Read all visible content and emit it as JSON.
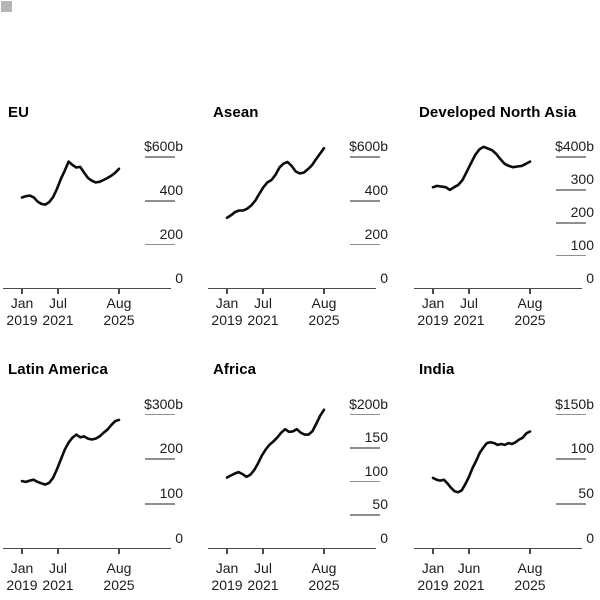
{
  "colors": {
    "background": "#ffffff",
    "line": "#0c0c0c",
    "grid": "#8f8f8f",
    "axis": "#4a4a4a",
    "text": "#1c1c1c",
    "title": "#000000",
    "corner_mark": "#b5b5b5"
  },
  "chart_data": [
    {
      "type": "line",
      "title": "EU",
      "unit": "billion USD",
      "ylim": [
        0,
        600
      ],
      "y_ticks": [
        {
          "label": "$600b",
          "value": 600
        },
        {
          "label": "400",
          "value": 400
        },
        {
          "label": "200",
          "value": 200
        },
        {
          "label": "0",
          "value": 0
        }
      ],
      "x_ticks": [
        {
          "month": "Jan",
          "year": "2019"
        },
        {
          "month": "Jul",
          "year": "2021"
        },
        {
          "month": "Aug",
          "year": "2025"
        }
      ],
      "values": [
        415,
        421,
        424,
        416,
        397,
        386,
        383,
        394,
        416,
        454,
        499,
        537,
        579,
        564,
        552,
        555,
        529,
        504,
        492,
        484,
        487,
        495,
        504,
        514,
        528,
        546
      ]
    },
    {
      "type": "line",
      "title": "Asean",
      "unit": "billion USD",
      "ylim": [
        0,
        600
      ],
      "y_ticks": [
        {
          "label": "$600b",
          "value": 600
        },
        {
          "label": "400",
          "value": 400
        },
        {
          "label": "200",
          "value": 200
        },
        {
          "label": "0",
          "value": 0
        }
      ],
      "x_ticks": [
        {
          "month": "Jan",
          "year": "2019"
        },
        {
          "month": "Jul",
          "year": "2021"
        },
        {
          "month": "Aug",
          "year": "2025"
        }
      ],
      "values": [
        323,
        334,
        349,
        356,
        356,
        364,
        379,
        401,
        432,
        462,
        484,
        495,
        519,
        552,
        570,
        577,
        559,
        534,
        525,
        529,
        544,
        562,
        589,
        615,
        640
      ]
    },
    {
      "type": "line",
      "title": "Developed North Asia",
      "unit": "billion USD",
      "ylim": [
        0,
        400
      ],
      "y_ticks": [
        {
          "label": "$400b",
          "value": 400
        },
        {
          "label": "300",
          "value": 300
        },
        {
          "label": "200",
          "value": 200
        },
        {
          "label": "100",
          "value": 100
        },
        {
          "label": "0",
          "value": 0
        }
      ],
      "x_ticks": [
        {
          "month": "Jan",
          "year": "2019"
        },
        {
          "month": "Jul",
          "year": "2021"
        },
        {
          "month": "Aug",
          "year": "2025"
        }
      ],
      "values": [
        308,
        312,
        310,
        308,
        300,
        308,
        315,
        330,
        355,
        381,
        406,
        423,
        431,
        426,
        421,
        409,
        393,
        379,
        373,
        369,
        371,
        373,
        379,
        386
      ]
    },
    {
      "type": "line",
      "title": "Latin America",
      "unit": "billion USD",
      "ylim": [
        0,
        300
      ],
      "y_ticks": [
        {
          "label": "$300b",
          "value": 300
        },
        {
          "label": "200",
          "value": 200
        },
        {
          "label": "100",
          "value": 100
        },
        {
          "label": "0",
          "value": 0
        }
      ],
      "x_ticks": [
        {
          "month": "Jan",
          "year": "2019"
        },
        {
          "month": "Jul",
          "year": "2021"
        },
        {
          "month": "Aug",
          "year": "2025"
        }
      ],
      "values": [
        151,
        149,
        152,
        154,
        149,
        146,
        143,
        147,
        158,
        177,
        199,
        221,
        237,
        248,
        255,
        249,
        251,
        246,
        244,
        246,
        251,
        259,
        266,
        276,
        285,
        288
      ]
    },
    {
      "type": "line",
      "title": "Africa",
      "unit": "billion USD",
      "ylim": [
        0,
        200
      ],
      "y_ticks": [
        {
          "label": "$200b",
          "value": 200
        },
        {
          "label": "150",
          "value": 150
        },
        {
          "label": "100",
          "value": 100
        },
        {
          "label": "50",
          "value": 50
        },
        {
          "label": "0",
          "value": 0
        }
      ],
      "x_ticks": [
        {
          "month": "Jan",
          "year": "2019"
        },
        {
          "month": "Jul",
          "year": "2021"
        },
        {
          "month": "Aug",
          "year": "2025"
        }
      ],
      "values": [
        106,
        109,
        112,
        114,
        111,
        107,
        110,
        117,
        127,
        139,
        148,
        155,
        160,
        166,
        173,
        178,
        174,
        175,
        178,
        173,
        170,
        170,
        175,
        186,
        198,
        207
      ]
    },
    {
      "type": "line",
      "title": "India",
      "unit": "billion USD",
      "ylim": [
        0,
        150
      ],
      "y_ticks": [
        {
          "label": "$150b",
          "value": 150
        },
        {
          "label": "100",
          "value": 100
        },
        {
          "label": "50",
          "value": 50
        },
        {
          "label": "0",
          "value": 0
        }
      ],
      "x_ticks": [
        {
          "month": "Jan",
          "year": "2019"
        },
        {
          "month": "Jun",
          "year": "2021"
        },
        {
          "month": "Aug",
          "year": "2025"
        }
      ],
      "values": [
        79,
        77,
        76,
        77,
        73,
        68,
        64,
        63,
        65,
        72,
        80,
        90,
        98,
        107,
        113,
        118,
        119,
        118,
        116,
        117,
        116,
        118,
        117,
        119,
        122,
        124,
        129,
        131
      ]
    }
  ]
}
